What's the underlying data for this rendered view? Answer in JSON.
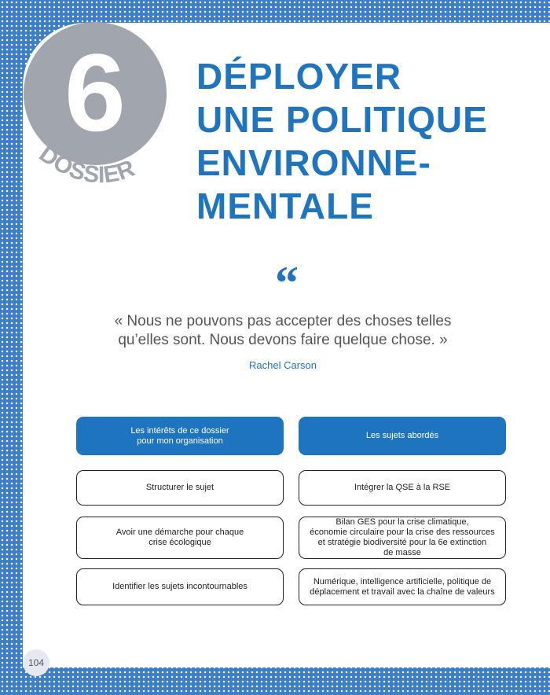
{
  "dossier": {
    "number": "6",
    "label": "DOSSIER"
  },
  "title": {
    "lines": [
      "DÉPLOYER",
      "UNE POLITIQUE",
      "ENVIRONNE-",
      "MENTALE"
    ]
  },
  "quote": {
    "mark": "“",
    "lines": [
      "« Nous ne pouvons pas accepter des choses telles",
      "qu’elles sont. Nous devons faire quelque chose. »"
    ],
    "author": "Rachel Carson"
  },
  "left": {
    "header": [
      "Les intérêts de ce dossier",
      "pour mon organisation"
    ],
    "items": [
      [
        "Structurer le sujet"
      ],
      [
        "Avoir une démarche pour chaque",
        "crise écologique"
      ],
      [
        "Identifier les sujets incontournables"
      ]
    ]
  },
  "right": {
    "header": [
      "Les sujets abordés"
    ],
    "items": [
      [
        "Intégrer la QSE à la RSE"
      ],
      [
        "Bilan GES pour la crise climatique,",
        "économie circulaire pour la crise des ressources",
        "et stratégie biodiversité pour la 6e extinction",
        "de masse"
      ],
      [
        "Numérique, intelligence artificielle, politique de",
        "déplacement et travail avec la chaîne de valeurs"
      ]
    ]
  },
  "page_number": "104",
  "colors": {
    "accent": "#1f74c0",
    "border": "#3d7fc6",
    "badge": "#a0a5ae"
  }
}
